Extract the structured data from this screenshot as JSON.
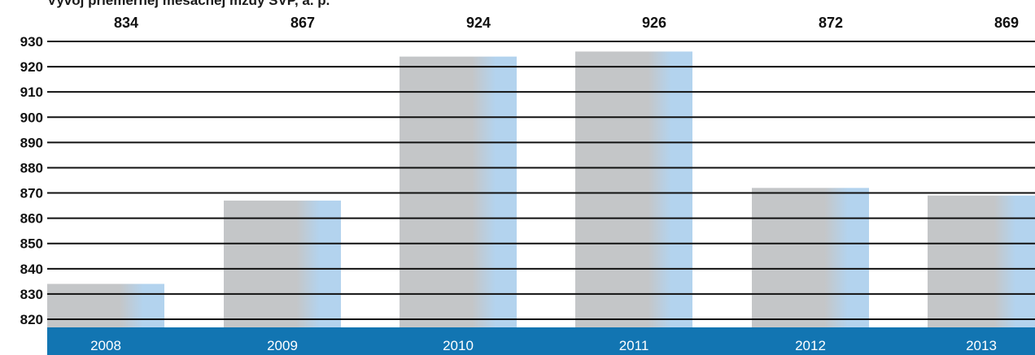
{
  "title": "Vývoj priemernej mesačnej mzdy SVP, a. p.",
  "colors": {
    "bar_gray": "#c4c6c8",
    "bar_blue": "#b3d3ee",
    "axis_band": "#1275b2",
    "gridline": "#111111"
  },
  "chart_data": {
    "type": "bar",
    "title": "Vývoj priemernej mesačnej mzdy SVP, a. p.",
    "categories": [
      "2008",
      "2009",
      "2010",
      "2011",
      "2012",
      "2013"
    ],
    "values": [
      834,
      867,
      924,
      926,
      872,
      869
    ],
    "value_labels": [
      "834",
      "867",
      "924",
      "926",
      "872",
      "869"
    ],
    "xlabel": "",
    "ylabel": "",
    "ylim": [
      815,
      935
    ],
    "yticks": [
      820,
      830,
      840,
      850,
      860,
      870,
      880,
      890,
      900,
      910,
      920,
      930
    ],
    "grid": true,
    "legend": "none"
  }
}
